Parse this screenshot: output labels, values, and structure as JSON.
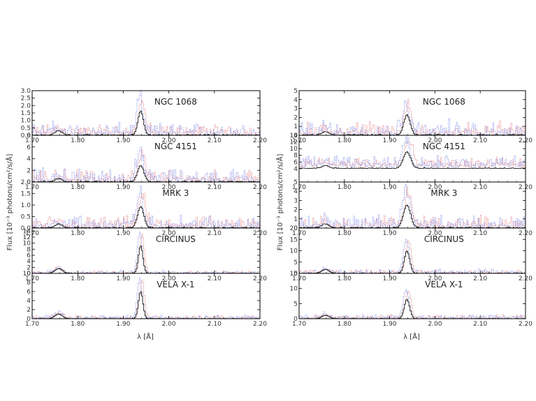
{
  "colors": {
    "frame": "#000000",
    "series_red": "#e06666",
    "series_blue": "#6a78e8",
    "series_black": "#000000"
  },
  "ylabel": "Flux [10⁻³ photons/cm²/s/Å]",
  "xlabel": "λ [Å]",
  "chart_data": [
    {
      "type": "line",
      "column": "left",
      "xlim": [
        1.7,
        2.2
      ],
      "x_ticks": [
        "1.70",
        "1.80",
        "1.90",
        "2.00",
        "2.10",
        "2.20"
      ],
      "panels": [
        {
          "object": "NGC 1068",
          "ylim": [
            0,
            3.0
          ],
          "y_ticks": [
            "0.0",
            "0.5",
            "1.0",
            "1.5",
            "2.0",
            "2.5",
            "3.0"
          ],
          "peak": 2.3,
          "noise": 0.9,
          "width": 0.006
        },
        {
          "object": "NGC 4151",
          "ylim": [
            0,
            8
          ],
          "y_ticks": [
            "0",
            "2",
            "4",
            "6",
            "8"
          ],
          "peak": 4.0,
          "noise": 2.5,
          "width": 0.007
        },
        {
          "object": "MRK 3",
          "ylim": [
            0,
            2.0
          ],
          "y_ticks": [
            "0.0",
            "0.5",
            "1.0",
            "1.5",
            "2.0"
          ],
          "peak": 1.3,
          "noise": 0.6,
          "width": 0.007
        },
        {
          "object": "CIRCINUS",
          "ylim": [
            0,
            15
          ],
          "y_ticks": [
            "0",
            "2",
            "4",
            "6",
            "8",
            "10",
            "12",
            "14"
          ],
          "peak": 13.0,
          "noise": 1.0,
          "width": 0.005
        },
        {
          "object": "VELA X-1",
          "ylim": [
            0,
            10
          ],
          "y_ticks": [
            "0",
            "2",
            "4",
            "6",
            "8",
            "10"
          ],
          "peak": 8.5,
          "noise": 0.9,
          "width": 0.005
        }
      ]
    },
    {
      "type": "line",
      "column": "right",
      "xlim": [
        1.7,
        2.2
      ],
      "x_ticks": [
        "1.70",
        "1.80",
        "1.90",
        "2.00",
        "2.10",
        "2.20"
      ],
      "panels": [
        {
          "object": "NGC 1068",
          "ylim": [
            0,
            5
          ],
          "y_ticks": [
            "0",
            "1",
            "2",
            "3",
            "4",
            "5"
          ],
          "peak": 3.2,
          "noise": 1.8,
          "width": 0.007
        },
        {
          "object": "NGC 4151",
          "ylim": [
            0,
            14
          ],
          "y_ticks": [
            "4",
            "6",
            "8",
            "10",
            "12",
            "14"
          ],
          "peak": 7.0,
          "noise": 3.5,
          "width": 0.008,
          "base": 4.5
        },
        {
          "object": "MRK 3",
          "ylim": [
            0,
            5
          ],
          "y_ticks": [
            "0",
            "1",
            "2",
            "3",
            "4",
            "5"
          ],
          "peak": 3.5,
          "noise": 1.5,
          "width": 0.008
        },
        {
          "object": "CIRCINUS",
          "ylim": [
            0,
            20
          ],
          "y_ticks": [
            "0",
            "5",
            "10",
            "15",
            "20"
          ],
          "peak": 14.0,
          "noise": 2.0,
          "width": 0.006
        },
        {
          "object": "VELA X-1",
          "ylim": [
            0,
            15
          ],
          "y_ticks": [
            "0",
            "5",
            "10",
            "15"
          ],
          "peak": 9.0,
          "noise": 1.5,
          "width": 0.006
        }
      ]
    }
  ]
}
